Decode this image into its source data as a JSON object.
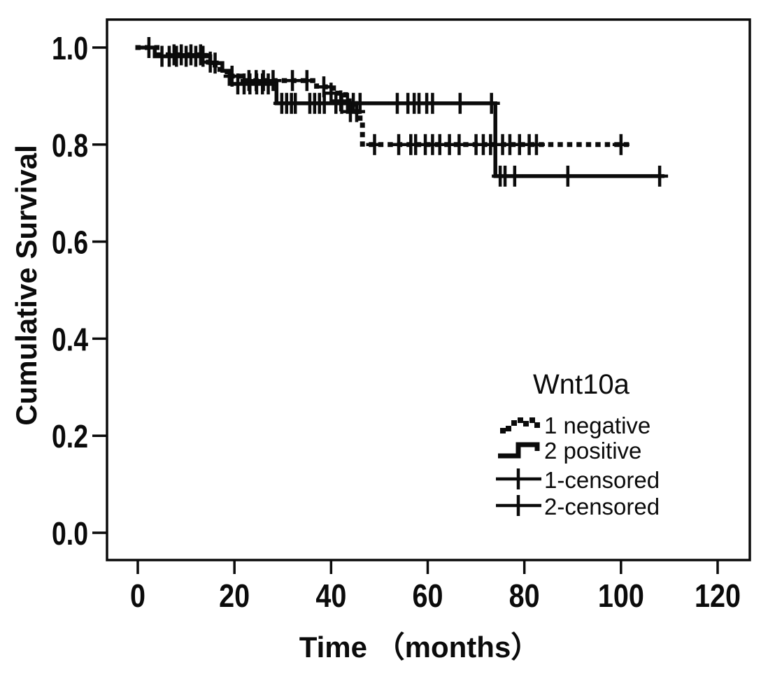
{
  "figure": {
    "background": "#ffffff",
    "ink": "#0b0b0b"
  },
  "chart_data": {
    "type": "line",
    "subtype": "kaplan-meier-step-survival",
    "title": "",
    "xlabel": "Time （months）",
    "ylabel": "Cumulative Survival",
    "xlim": [
      -6.4,
      126.7
    ],
    "ylim": [
      -0.056,
      1.058
    ],
    "grid": false,
    "xticks": [
      {
        "label": "0",
        "value": 0
      },
      {
        "label": "20",
        "value": 20
      },
      {
        "label": "40",
        "value": 40
      },
      {
        "label": "60",
        "value": 60
      },
      {
        "label": "80",
        "value": 80
      },
      {
        "label": "100",
        "value": 100
      },
      {
        "label": "120",
        "value": 120
      }
    ],
    "yticks": [
      {
        "label": "1.0",
        "value": 1.0
      },
      {
        "label": "0.8",
        "value": 0.8
      },
      {
        "label": "0.6",
        "value": 0.6
      },
      {
        "label": "0.4",
        "value": 0.4
      },
      {
        "label": "0.2",
        "value": 0.2
      },
      {
        "label": "0.0",
        "value": 0.0
      }
    ],
    "legend": {
      "title": "Wnt10a",
      "position": "inside-lower-right",
      "items": [
        {
          "label": "1 negative",
          "glyph": "dotted-step"
        },
        {
          "label": "2 positive",
          "glyph": "solid-step"
        },
        {
          "label": "1-censored",
          "glyph": "plus"
        },
        {
          "label": "2-censored",
          "glyph": "plus"
        }
      ]
    },
    "series": [
      {
        "name": "1 negative",
        "line_style": "dotted",
        "color": "#0b0b0b",
        "steps": [
          [
            0,
            1.0
          ],
          [
            4,
            0.985
          ],
          [
            14,
            0.97
          ],
          [
            16,
            0.955
          ],
          [
            18.5,
            0.941
          ],
          [
            21.5,
            0.932
          ],
          [
            37,
            0.919
          ],
          [
            40.5,
            0.906
          ],
          [
            43,
            0.89
          ],
          [
            45,
            0.868
          ],
          [
            46,
            0.85
          ],
          [
            46.5,
            0.8
          ],
          [
            102,
            0.8
          ]
        ],
        "censors": [
          [
            2.3,
            1.0
          ],
          [
            7.5,
            0.985
          ],
          [
            9,
            0.985
          ],
          [
            11,
            0.985
          ],
          [
            13,
            0.985
          ],
          [
            15,
            0.97
          ],
          [
            19.5,
            0.941
          ],
          [
            23,
            0.932
          ],
          [
            24.5,
            0.932
          ],
          [
            26,
            0.932
          ],
          [
            28,
            0.932
          ],
          [
            32,
            0.932
          ],
          [
            35,
            0.932
          ],
          [
            38.5,
            0.919
          ],
          [
            40,
            0.906
          ],
          [
            42,
            0.89
          ],
          [
            44,
            0.868
          ],
          [
            45.3,
            0.868
          ],
          [
            49,
            0.8
          ],
          [
            54,
            0.8
          ],
          [
            56.5,
            0.8
          ],
          [
            57.5,
            0.8
          ],
          [
            59.5,
            0.8
          ],
          [
            61,
            0.8
          ],
          [
            62.5,
            0.8
          ],
          [
            64.5,
            0.8
          ],
          [
            66.5,
            0.8
          ],
          [
            70,
            0.8
          ],
          [
            71.5,
            0.8
          ],
          [
            73,
            0.8
          ],
          [
            75.5,
            0.8
          ],
          [
            77,
            0.8
          ],
          [
            79,
            0.8
          ],
          [
            81,
            0.8
          ],
          [
            82.5,
            0.8
          ],
          [
            100,
            0.8
          ]
        ]
      },
      {
        "name": "2 positive",
        "line_style": "solid",
        "color": "#0b0b0b",
        "steps": [
          [
            0,
            1.0
          ],
          [
            3.5,
            0.982
          ],
          [
            15,
            0.968
          ],
          [
            17.5,
            0.952
          ],
          [
            19,
            0.925
          ],
          [
            28.7,
            0.885
          ],
          [
            74,
            0.735
          ],
          [
            109,
            0.735
          ]
        ],
        "censors": [
          [
            5,
            0.982
          ],
          [
            6.5,
            0.982
          ],
          [
            8,
            0.982
          ],
          [
            10,
            0.982
          ],
          [
            12,
            0.982
          ],
          [
            13.5,
            0.982
          ],
          [
            16,
            0.968
          ],
          [
            20.7,
            0.925
          ],
          [
            22,
            0.925
          ],
          [
            23.2,
            0.925
          ],
          [
            24.6,
            0.925
          ],
          [
            25.8,
            0.925
          ],
          [
            27,
            0.925
          ],
          [
            29.8,
            0.885
          ],
          [
            30.8,
            0.885
          ],
          [
            31.8,
            0.885
          ],
          [
            32.6,
            0.885
          ],
          [
            35.6,
            0.885
          ],
          [
            36.6,
            0.885
          ],
          [
            37.6,
            0.885
          ],
          [
            38.6,
            0.885
          ],
          [
            41,
            0.885
          ],
          [
            42.2,
            0.885
          ],
          [
            43.4,
            0.885
          ],
          [
            44.6,
            0.885
          ],
          [
            46,
            0.885
          ],
          [
            53.7,
            0.885
          ],
          [
            55.9,
            0.885
          ],
          [
            57.2,
            0.885
          ],
          [
            58.2,
            0.885
          ],
          [
            59.8,
            0.885
          ],
          [
            61,
            0.885
          ],
          [
            66.7,
            0.885
          ],
          [
            73.2,
            0.885
          ],
          [
            75,
            0.735
          ],
          [
            76,
            0.735
          ],
          [
            78,
            0.735
          ],
          [
            89,
            0.735
          ],
          [
            108,
            0.735
          ]
        ]
      }
    ]
  }
}
